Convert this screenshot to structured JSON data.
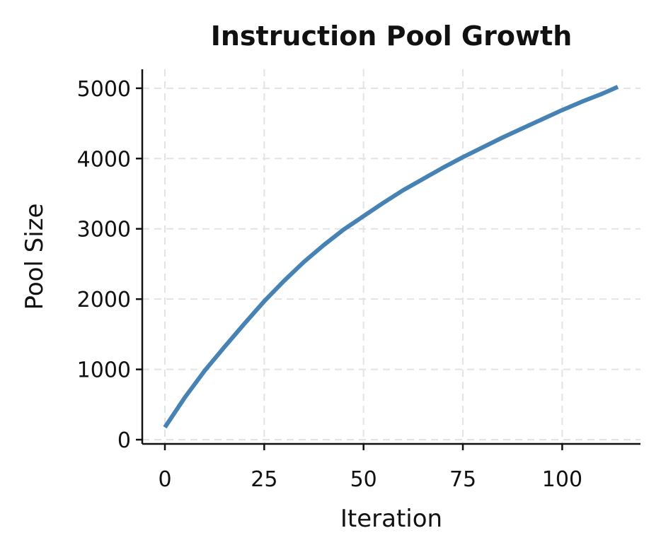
{
  "chart_data": {
    "type": "line",
    "title": "Instruction Pool Growth",
    "xlabel": "Iteration",
    "ylabel": "Pool Size",
    "xlim": [
      -5.7,
      119.7
    ],
    "ylim": [
      -60,
      5270
    ],
    "xticks": [
      0,
      25,
      50,
      75,
      100
    ],
    "yticks": [
      0,
      1000,
      2000,
      3000,
      4000,
      5000
    ],
    "grid": true,
    "series": [
      {
        "color": "#4682b4",
        "x": [
          0,
          5,
          10,
          15,
          20,
          25,
          30,
          35,
          40,
          45,
          50,
          55,
          60,
          65,
          70,
          75,
          80,
          85,
          90,
          95,
          100,
          105,
          110,
          114
        ],
        "y": [
          175,
          600,
          980,
          1320,
          1650,
          1970,
          2260,
          2530,
          2770,
          2990,
          3180,
          3370,
          3550,
          3710,
          3870,
          4020,
          4160,
          4300,
          4430,
          4560,
          4690,
          4810,
          4920,
          5020
        ]
      }
    ]
  }
}
